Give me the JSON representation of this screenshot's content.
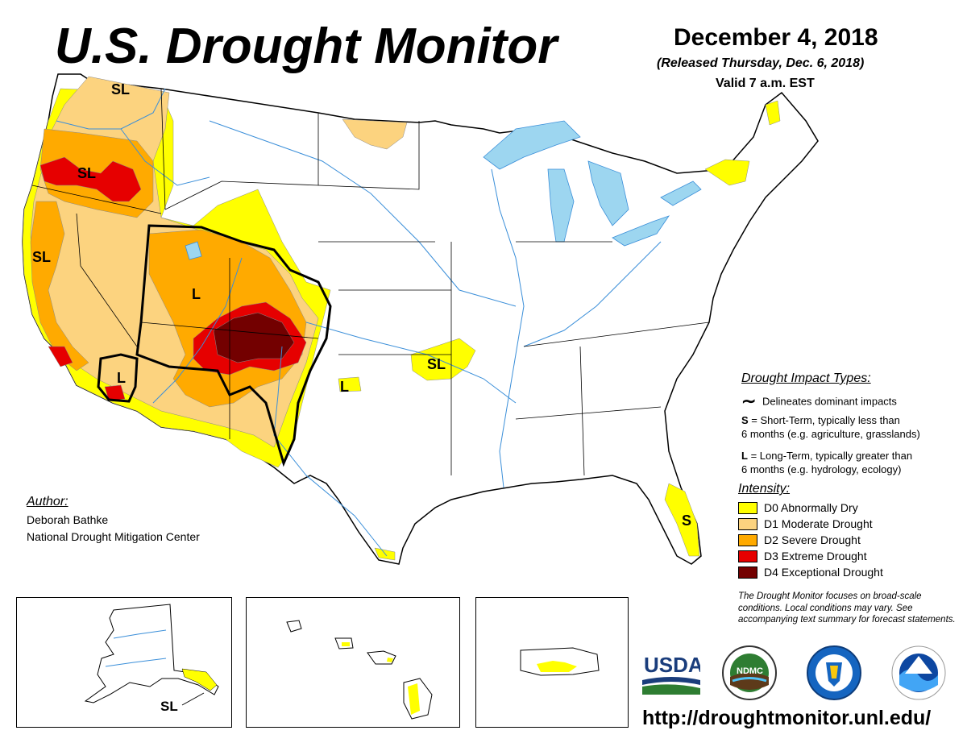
{
  "header": {
    "title": "U.S. Drought Monitor",
    "date": "December 4, 2018",
    "released": "(Released Thursday, Dec. 6, 2018)",
    "valid": "Valid 7 a.m. EST"
  },
  "map_labels": {
    "sl_northwest": "SL",
    "sl_oregon": "SL",
    "sl_california": "SL",
    "l_four_corners": "L",
    "l_southern_california": "L",
    "l_new_mexico": "L",
    "sl_oklahoma": "SL",
    "s_florida": "S",
    "sl_alaska": "SL"
  },
  "impact_legend": {
    "title": "Drought Impact Types:",
    "delineates": "Delineates dominant impacts",
    "short_term_code": "S",
    "short_term_line1": " = Short-Term, typically less than",
    "short_term_line2": "6 months (e.g. agriculture, grasslands)",
    "long_term_code": "L",
    "long_term_line1": " = Long-Term, typically greater than",
    "long_term_line2": "6 months (e.g. hydrology, ecology)"
  },
  "intensity_legend": {
    "title": "Intensity:",
    "items": [
      {
        "label": "D0 Abnormally Dry",
        "color": "#ffff00"
      },
      {
        "label": "D1 Moderate Drought",
        "color": "#fcd37f"
      },
      {
        "label": "D2 Severe Drought",
        "color": "#ffaa00"
      },
      {
        "label": "D3 Extreme Drought",
        "color": "#e60000"
      },
      {
        "label": "D4 Exceptional Drought",
        "color": "#730000"
      }
    ]
  },
  "author": {
    "title": "Author:",
    "name": "Deborah Bathke",
    "organization": "National Drought Mitigation Center"
  },
  "focus_note": "The Drought Monitor focuses on broad-scale conditions. Local conditions may vary. See accompanying text summary for forecast statements.",
  "logos": {
    "usda": "USDA",
    "ndmc": "NDMC"
  },
  "url": "http://droughtmonitor.unl.edu/",
  "colors": {
    "water": "#9dd6f0",
    "river": "#3b8fd9",
    "border": "#000000"
  }
}
